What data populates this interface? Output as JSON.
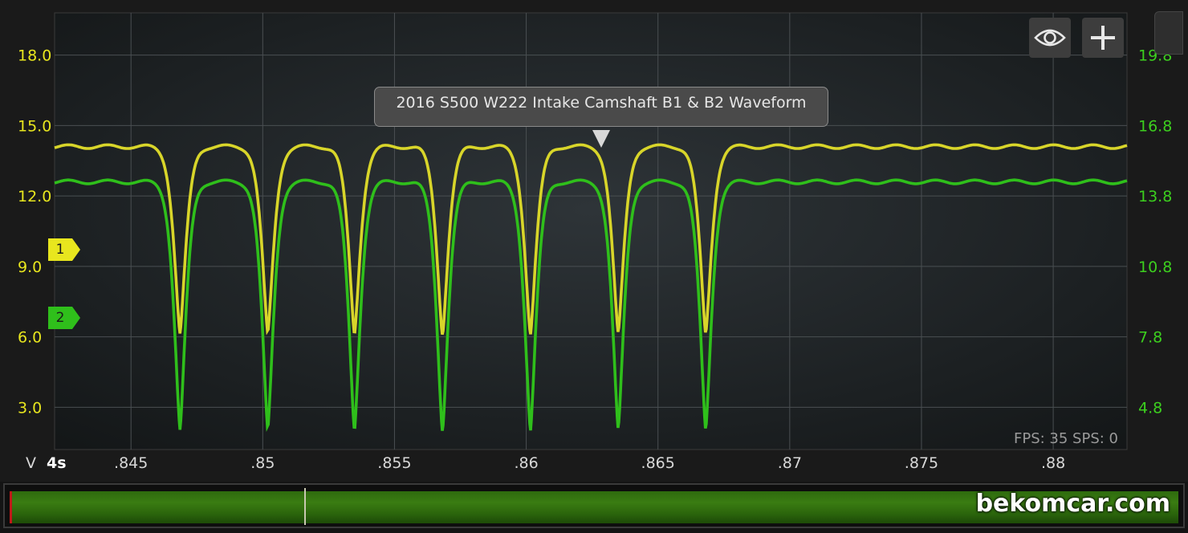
{
  "chart_data": {
    "type": "line",
    "title": "2016 S500 W222 Intake Camshaft B1 & B2 Waveform",
    "xlabel": "",
    "ylabel": "V",
    "timebase": "4s",
    "x_ticks": [
      ".845",
      ".85",
      ".855",
      ".86",
      ".865",
      ".87",
      ".875",
      ".88"
    ],
    "x_tick_values": [
      0.845,
      0.85,
      0.855,
      0.86,
      0.865,
      0.87,
      0.875,
      0.88
    ],
    "xlim": [
      0.8421,
      0.8828
    ],
    "y_left_ticks": [
      "3.0",
      "6.0",
      "9.0",
      "12.0",
      "15.0",
      "18.0"
    ],
    "y_left_tick_values": [
      3,
      6,
      9,
      12,
      15,
      18
    ],
    "ylim_left": [
      1.2,
      19.8
    ],
    "y_right_ticks": [
      "4.8",
      "7.8",
      "10.8",
      "13.8",
      "16.8",
      "19.8"
    ],
    "y_right_tick_values": [
      4.8,
      7.8,
      10.8,
      13.8,
      16.8,
      19.8
    ],
    "ylim_right": [
      3.0,
      21.6
    ],
    "grid": true,
    "channel_markers": [
      "1",
      "2"
    ],
    "series": [
      {
        "name": "1",
        "color": "#d8d52a",
        "axis": "left",
        "baseline": 14.1,
        "dip_min": 6.1,
        "dip_x": [
          0.84686,
          0.85019,
          0.85348,
          0.85682,
          0.86016,
          0.86349,
          0.86681
        ]
      },
      {
        "name": "2",
        "color": "#2fbf1b",
        "axis": "right",
        "baseline": 14.4,
        "dip_min": 3.8,
        "dip_x": [
          0.84686,
          0.85019,
          0.85348,
          0.85682,
          0.86016,
          0.86349,
          0.86681
        ]
      }
    ]
  },
  "overlay": {
    "fps_label": "FPS: 35  SPS: 0"
  },
  "controls": {
    "eye_icon": "eye-icon",
    "add_icon": "plus-icon"
  },
  "watermark": "bekomcar.com"
}
